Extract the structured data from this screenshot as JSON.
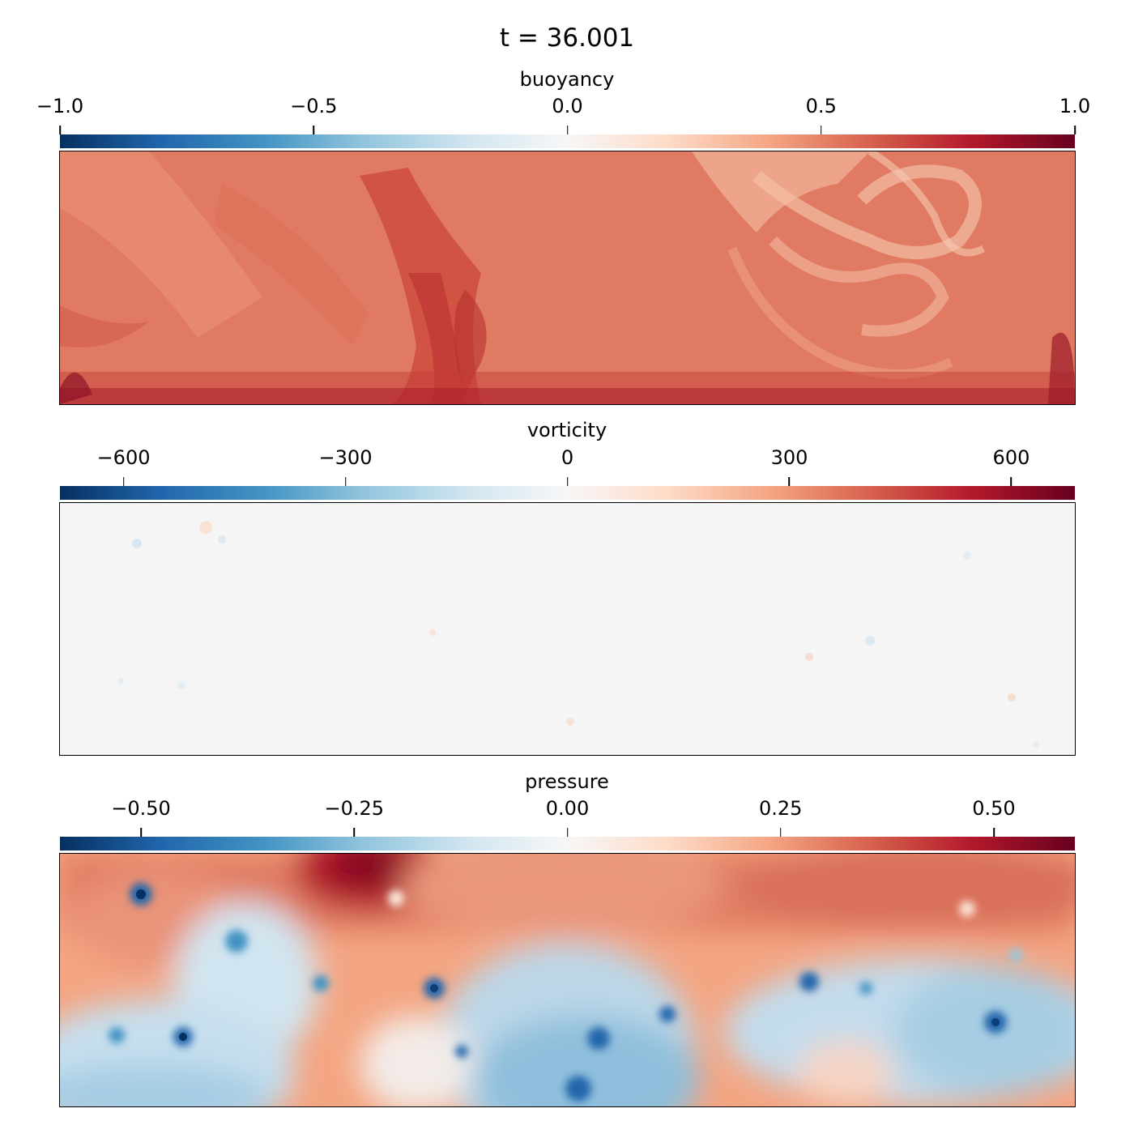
{
  "figure": {
    "title": "t = 36.001",
    "colormap": "RdBu_r",
    "colormap_stops": [
      "#053061",
      "#2166ac",
      "#4393c3",
      "#92c5de",
      "#d1e5f0",
      "#f7f7f7",
      "#fddbc7",
      "#f4a582",
      "#d6604d",
      "#b2182b",
      "#67001f"
    ]
  },
  "chart_data": [
    {
      "type": "heatmap",
      "title": "buoyancy",
      "colorbar_label": "buoyancy",
      "colorbar_range": [
        -1.0,
        1.0
      ],
      "colorbar_ticks": [
        -1.0,
        -0.5,
        0.0,
        0.5,
        1.0
      ],
      "colorbar_tick_labels": [
        "−1.0",
        "−0.5",
        "0.0",
        "0.5",
        "1.0"
      ],
      "typical_value": 0.58,
      "features": [
        {
          "kind": "warm-plume",
          "x": 0.38,
          "y": 0.55,
          "value": 0.82
        },
        {
          "kind": "cool-swirl",
          "x": 0.82,
          "y": 0.25,
          "value": 0.42
        },
        {
          "kind": "warm-boundary-layer",
          "x": 0.5,
          "y": 0.98,
          "value": 0.85
        }
      ]
    },
    {
      "type": "heatmap",
      "title": "vorticity",
      "colorbar_label": "vorticity",
      "colorbar_range": [
        -686,
        686
      ],
      "colorbar_ticks": [
        -600,
        -300,
        0,
        300,
        600
      ],
      "colorbar_tick_labels": [
        "−600",
        "−300",
        "0",
        "300",
        "600"
      ],
      "typical_value": 0
    },
    {
      "type": "heatmap",
      "title": "pressure",
      "colorbar_label": "pressure",
      "colorbar_range": [
        -0.595,
        0.595
      ],
      "colorbar_ticks": [
        -0.5,
        -0.25,
        0.0,
        0.25,
        0.5
      ],
      "colorbar_tick_labels": [
        "−0.50",
        "−0.25",
        "0.00",
        "0.25",
        "0.50"
      ],
      "features": [
        {
          "kind": "high",
          "x": 0.3,
          "y": 0.08,
          "value": 0.52
        },
        {
          "kind": "high",
          "x": 0.5,
          "y": 0.1,
          "value": 0.3
        },
        {
          "kind": "high",
          "x": 0.85,
          "y": 0.12,
          "value": 0.32
        },
        {
          "kind": "low",
          "x": 0.08,
          "y": 0.15,
          "value": -0.45
        },
        {
          "kind": "low",
          "x": 0.18,
          "y": 0.35,
          "value": -0.3
        },
        {
          "kind": "low",
          "x": 0.37,
          "y": 0.53,
          "value": -0.35
        },
        {
          "kind": "low",
          "x": 0.53,
          "y": 0.75,
          "value": -0.3
        },
        {
          "kind": "low",
          "x": 0.9,
          "y": 0.67,
          "value": -0.3
        },
        {
          "kind": "low",
          "x": 0.12,
          "y": 0.75,
          "value": -0.35
        }
      ]
    }
  ]
}
